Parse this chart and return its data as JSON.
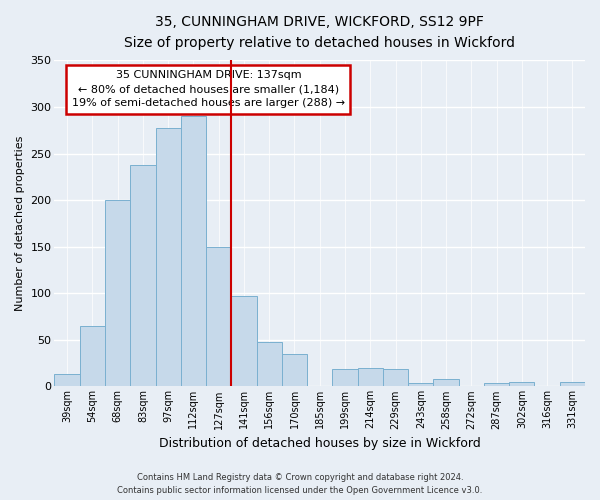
{
  "title": "35, CUNNINGHAM DRIVE, WICKFORD, SS12 9PF",
  "subtitle": "Size of property relative to detached houses in Wickford",
  "xlabel": "Distribution of detached houses by size in Wickford",
  "ylabel": "Number of detached properties",
  "bin_labels": [
    "39sqm",
    "54sqm",
    "68sqm",
    "83sqm",
    "97sqm",
    "112sqm",
    "127sqm",
    "141sqm",
    "156sqm",
    "170sqm",
    "185sqm",
    "199sqm",
    "214sqm",
    "229sqm",
    "243sqm",
    "258sqm",
    "272sqm",
    "287sqm",
    "302sqm",
    "316sqm",
    "331sqm"
  ],
  "bar_heights": [
    13,
    65,
    200,
    238,
    278,
    290,
    150,
    97,
    48,
    35,
    0,
    19,
    20,
    19,
    4,
    8,
    0,
    4,
    5,
    0,
    5
  ],
  "bar_color": "#c6d9ea",
  "bar_edge_color": "#7ab0d0",
  "vline_x_idx": 7,
  "vline_color": "#cc0000",
  "annotation_title": "35 CUNNINGHAM DRIVE: 137sqm",
  "annotation_line1": "← 80% of detached houses are smaller (1,184)",
  "annotation_line2": "19% of semi-detached houses are larger (288) →",
  "annotation_box_color": "#ffffff",
  "annotation_box_edge": "#cc0000",
  "ylim": [
    0,
    350
  ],
  "yticks": [
    0,
    50,
    100,
    150,
    200,
    250,
    300,
    350
  ],
  "footer1": "Contains HM Land Registry data © Crown copyright and database right 2024.",
  "footer2": "Contains public sector information licensed under the Open Government Licence v3.0.",
  "background_color": "#e8eef5"
}
